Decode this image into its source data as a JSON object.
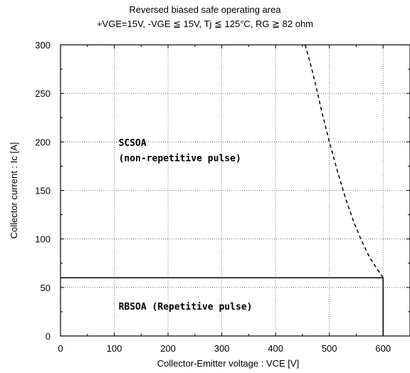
{
  "chart_data": {
    "type": "line",
    "title": "Reversed biased safe operating area",
    "subtitle": "+VGE=15V,  -VGE ≦ 15V,  Tj ≦ 125°C,  RG ≧ 82 ohm",
    "xlabel": "Collector-Emitter voltage  :  VCE [V]",
    "ylabel": "Collector current  :  Ic [A]",
    "xlim": [
      0,
      650
    ],
    "ylim": [
      0,
      300
    ],
    "xticks": [
      0,
      100,
      200,
      300,
      400,
      500,
      600
    ],
    "yticks": [
      0,
      50,
      100,
      150,
      200,
      250,
      300
    ],
    "grid": true,
    "series": [
      {
        "name": "",
        "style": "solid",
        "color": "#000000",
        "x": [
          0,
          600,
          600
        ],
        "y": [
          60,
          60,
          0
        ]
      },
      {
        "name": "",
        "style": "dashed",
        "color": "#000000",
        "x": [
          455,
          465,
          475,
          485,
          500,
          515,
          530,
          545,
          560,
          575,
          590,
          600
        ],
        "y": [
          300,
          280,
          258,
          233,
          200,
          170,
          142,
          118,
          98,
          81,
          68,
          60
        ]
      }
    ],
    "annotations": [
      {
        "text": "SCSOA",
        "x": 108,
        "y": 196
      },
      {
        "text": "(non-repetitive pulse)",
        "x": 108,
        "y": 180
      },
      {
        "text": "RBSOA (Repetitive pulse)",
        "x": 108,
        "y": 27
      }
    ]
  }
}
